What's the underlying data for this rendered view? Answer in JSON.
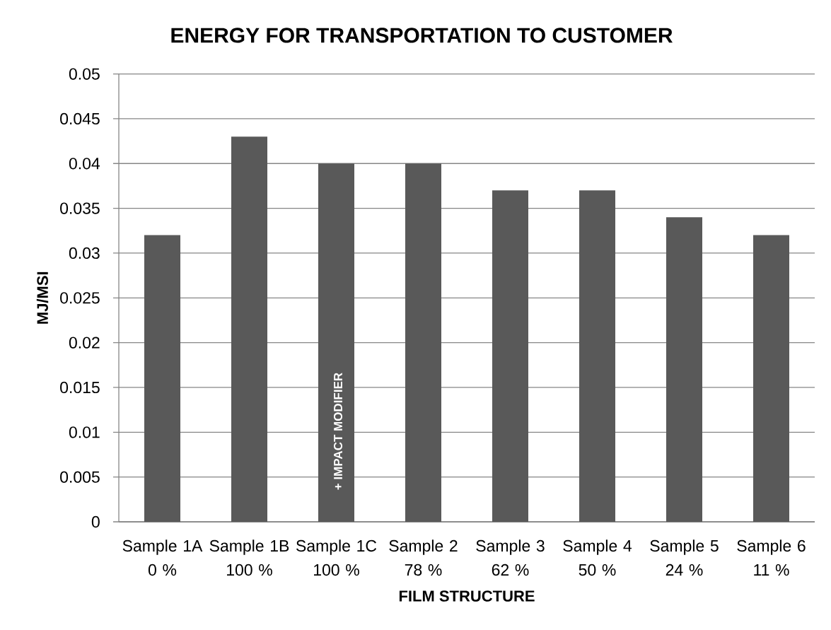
{
  "chart_data": {
    "type": "bar",
    "title": "ENERGY FOR TRANSPORTATION TO CUSTOMER",
    "xlabel": "FILM STRUCTURE",
    "ylabel": "MJ/MSI",
    "categories": [
      "Sample 1A\n0 %",
      "Sample 1B\n100 %",
      "Sample 1C\n100 %",
      "Sample 2\n78 %",
      "Sample 3\n62 %",
      "Sample 4\n50 %",
      "Sample 5\n24 %",
      "Sample 6\n11 %"
    ],
    "values": [
      0.032,
      0.043,
      0.04,
      0.04,
      0.037,
      0.037,
      0.034,
      0.032
    ],
    "color": "#595959",
    "ylim": [
      0,
      0.05
    ],
    "yticks": [
      0,
      0.005,
      0.01,
      0.015,
      0.02,
      0.025,
      0.03,
      0.035,
      0.04,
      0.045,
      0.05
    ],
    "grid": "y",
    "annotations": [
      "+ IMPACT MODIFIER"
    ]
  }
}
